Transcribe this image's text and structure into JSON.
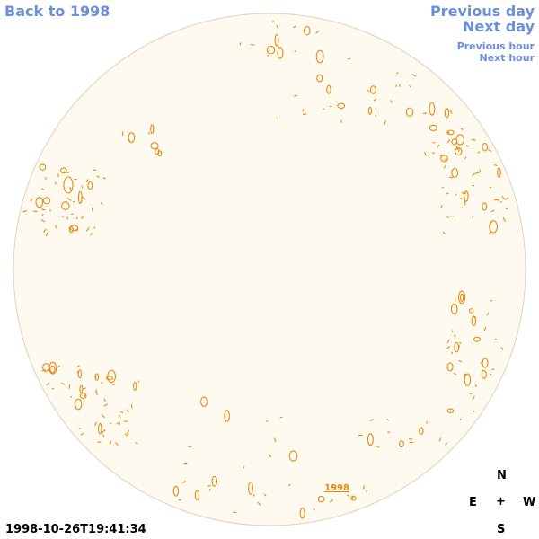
{
  "nav": {
    "back": "Back to 1998",
    "previous_day": "Previous day",
    "next_day": "Next day",
    "previous_hour": "Previous hour",
    "next_hour": "Next hour"
  },
  "disk": {
    "year_link": "1998",
    "fill_color": "#fffaef",
    "edge_color": "#ddd3bd",
    "feature_color": "#e88a10"
  },
  "timestamp": "1998-10-26T19:41:34",
  "compass": {
    "north": "N",
    "east": "E",
    "center": "+",
    "west": "W",
    "south": "S"
  }
}
